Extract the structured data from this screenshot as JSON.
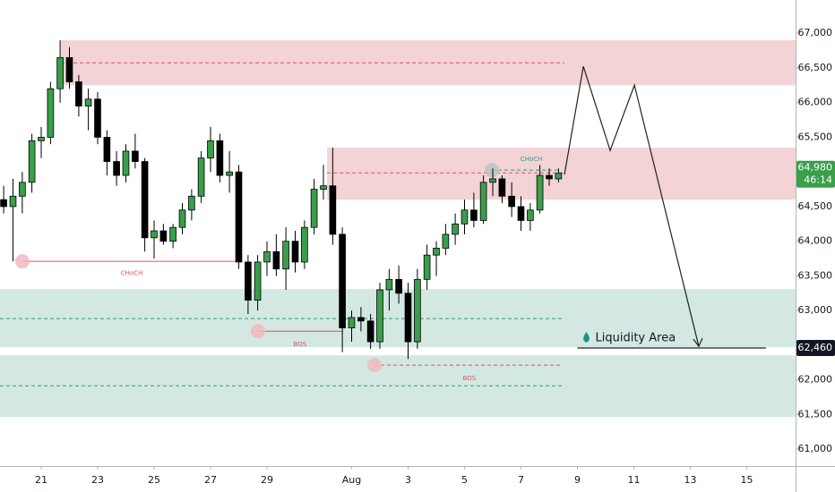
{
  "chart_data": {
    "type": "candlestick",
    "xlim": [
      -1.46,
      26.73
    ],
    "ylim": [
      60770,
      67480
    ],
    "grid": false,
    "up_color": "#3a9e4a",
    "down_color": "#000000",
    "xticks": [
      {
        "value": 0,
        "label": "21"
      },
      {
        "value": 2,
        "label": "23"
      },
      {
        "value": 4,
        "label": "25"
      },
      {
        "value": 6,
        "label": "27"
      },
      {
        "value": 8,
        "label": "29"
      },
      {
        "value": 11,
        "label": "Aug"
      },
      {
        "value": 13,
        "label": "3"
      },
      {
        "value": 15,
        "label": "5"
      },
      {
        "value": 17,
        "label": "7"
      },
      {
        "value": 19,
        "label": "9"
      },
      {
        "value": 21,
        "label": "11"
      },
      {
        "value": 23,
        "label": "13"
      },
      {
        "value": 25,
        "label": "15"
      }
    ],
    "yticks": [
      {
        "value": 61000,
        "label": "61,000"
      },
      {
        "value": 61500,
        "label": "61,500"
      },
      {
        "value": 62000,
        "label": "62,000"
      },
      {
        "value": 62500,
        "label": "62,500"
      },
      {
        "value": 63000,
        "label": "63,000"
      },
      {
        "value": 63500,
        "label": "63,500"
      },
      {
        "value": 64000,
        "label": "64,000"
      },
      {
        "value": 64500,
        "label": "64,500"
      },
      {
        "value": 65000,
        "label": "65,000"
      },
      {
        "value": 65500,
        "label": "65,500"
      },
      {
        "value": 66000,
        "label": "66,000"
      },
      {
        "value": 66500,
        "label": "66,500"
      },
      {
        "value": 67000,
        "label": "67,000"
      }
    ],
    "candles": {
      "x": [
        -1.33,
        -1,
        -0.67,
        -0.33,
        0,
        0.33,
        0.67,
        1,
        1.33,
        1.67,
        2,
        2.33,
        2.67,
        3,
        3.33,
        3.67,
        4,
        4.33,
        4.67,
        5,
        5.33,
        5.67,
        6,
        6.33,
        6.67,
        7,
        7.33,
        7.67,
        8,
        8.33,
        8.67,
        9,
        9.33,
        9.67,
        10,
        10.33,
        10.67,
        11,
        11.33,
        11.67,
        12,
        12.33,
        12.67,
        13,
        13.33,
        13.67,
        14,
        14.33,
        14.67,
        15,
        15.33,
        15.67,
        16,
        16.33,
        16.67,
        17,
        17.33,
        17.67,
        18,
        18.33
      ],
      "open": [
        64600,
        64500,
        64650,
        64850,
        65450,
        65500,
        66200,
        66650,
        66300,
        65950,
        66050,
        65500,
        65150,
        64950,
        65300,
        65150,
        64050,
        64150,
        64000,
        64200,
        64450,
        64650,
        65200,
        65450,
        64950,
        65000,
        63700,
        63150,
        63700,
        63850,
        63600,
        64000,
        63700,
        64200,
        64750,
        64800,
        64100,
        62750,
        62900,
        62850,
        62550,
        63300,
        63450,
        63250,
        62550,
        63450,
        63800,
        63900,
        64100,
        64250,
        64450,
        64300,
        64850,
        64900,
        64650,
        64500,
        64300,
        64450,
        64950,
        64900
      ],
      "high": [
        64800,
        64900,
        65000,
        65550,
        65650,
        66300,
        66900,
        66800,
        66400,
        66200,
        66150,
        65600,
        65300,
        65400,
        65550,
        65200,
        64300,
        64250,
        64250,
        64550,
        64750,
        65300,
        65650,
        65550,
        65300,
        65100,
        63800,
        63800,
        64000,
        64100,
        64200,
        64150,
        64300,
        64900,
        65100,
        65350,
        64200,
        63000,
        63050,
        62950,
        63400,
        63600,
        63650,
        63400,
        63600,
        63950,
        64000,
        64250,
        64400,
        64600,
        64700,
        64950,
        65050,
        64950,
        64850,
        64650,
        64550,
        65100,
        65050,
        65050
      ],
      "low": [
        64400,
        63710,
        64400,
        64700,
        65200,
        65400,
        66000,
        66200,
        65800,
        65600,
        65400,
        64950,
        64800,
        64850,
        65050,
        63850,
        63750,
        63950,
        63900,
        64100,
        64300,
        64550,
        65000,
        64850,
        64700,
        63600,
        62950,
        63000,
        63500,
        63500,
        63300,
        63550,
        63600,
        64100,
        64600,
        63950,
        62400,
        62550,
        62700,
        62450,
        62450,
        63000,
        63100,
        62300,
        62450,
        63300,
        63500,
        63800,
        63950,
        64100,
        64200,
        64250,
        64650,
        64550,
        64350,
        64150,
        64150,
        64400,
        64800,
        64850
      ],
      "close": [
        64500,
        64650,
        64850,
        65450,
        65500,
        66200,
        66650,
        66300,
        65950,
        66050,
        65500,
        65150,
        64950,
        65300,
        65150,
        64050,
        64150,
        64000,
        64200,
        64450,
        64650,
        65200,
        65450,
        64950,
        65000,
        63700,
        63150,
        63700,
        63850,
        63600,
        64000,
        63700,
        64200,
        64750,
        64800,
        64100,
        62750,
        62900,
        62850,
        62550,
        63300,
        63450,
        63250,
        62550,
        63450,
        63800,
        63900,
        64100,
        64250,
        64450,
        64300,
        64850,
        64900,
        64650,
        64500,
        64300,
        64450,
        64950,
        64900,
        64980
      ]
    },
    "zones": [
      {
        "x_start": 0.7,
        "top": 66900,
        "bottom": 66250,
        "color": "#f3d3d6"
      },
      {
        "x_start": 10.13,
        "top": 65350,
        "bottom": 64600,
        "color": "#f3d3d6"
      },
      {
        "x_start": -1.46,
        "top": 63310,
        "bottom": 62471,
        "color": "#d3e8e2"
      },
      {
        "x_start": -1.46,
        "top": 62355,
        "bottom": 61465,
        "color": "#d3e8e2"
      }
    ],
    "dashed_lines": [
      {
        "price": 66574,
        "x_start": 0.7,
        "x_end": 18.54,
        "color": "#e0505a"
      },
      {
        "price": 64987,
        "x_start": 10.13,
        "x_end": 18.54,
        "color": "#e0505a"
      },
      {
        "price": 62884,
        "x_start": -1.46,
        "x_end": 18.54,
        "color": "#2e9c7a"
      },
      {
        "price": 61916,
        "x_start": -1.46,
        "x_end": 18.54,
        "color": "#2e9c7a"
      },
      {
        "price": 62213,
        "x_start": 11.81,
        "x_end": 18.38,
        "color": "#e0505a"
      },
      {
        "price": 65026,
        "x_start": 15.97,
        "x_end": 18.38,
        "color": "#2e9c7a"
      }
    ],
    "solid_lines": [
      {
        "price": 63710,
        "x_start": -0.67,
        "x_end": 7.05,
        "color": "#e0505a"
      },
      {
        "price": 62703,
        "x_start": 7.68,
        "x_end": 10.7,
        "color": "#e0505a"
      }
    ],
    "markers": [
      {
        "x": -0.67,
        "price": 63710,
        "color": "#f2b8bd"
      },
      {
        "x": 7.68,
        "price": 62703,
        "color": "#f2b8bd"
      },
      {
        "x": 11.81,
        "price": 62213,
        "color": "#f2b8bd"
      },
      {
        "x": 15.97,
        "price": 65026,
        "color": "#b8c4c0"
      }
    ],
    "annotations": [
      {
        "text": "CHoCH",
        "x": 3.21,
        "price": 63540,
        "color": "#e0505a"
      },
      {
        "text": "BOS",
        "x": 9.17,
        "price": 62510,
        "color": "#e0505a"
      },
      {
        "text": "BOS",
        "x": 15.17,
        "price": 62020,
        "color": "#e0505a"
      },
      {
        "text": "CHoCH",
        "x": 17.37,
        "price": 65180,
        "color": "#2e9c7a"
      }
    ],
    "projection": {
      "x": [
        18.54,
        19.21,
        20.16,
        21.02,
        23.3
      ],
      "values": [
        64961,
        66523,
        65310,
        66252,
        62484
      ]
    },
    "liquidity": {
      "text": "Liquidity Area",
      "price": 62460,
      "x_start": 19,
      "x_end": 25.68,
      "price_label": {
        "value": 62460,
        "label": "62,460"
      }
    },
    "last_price": {
      "value": 64980,
      "label": "64,980",
      "countdown": "46:14",
      "color": "#3a9e4a"
    }
  }
}
